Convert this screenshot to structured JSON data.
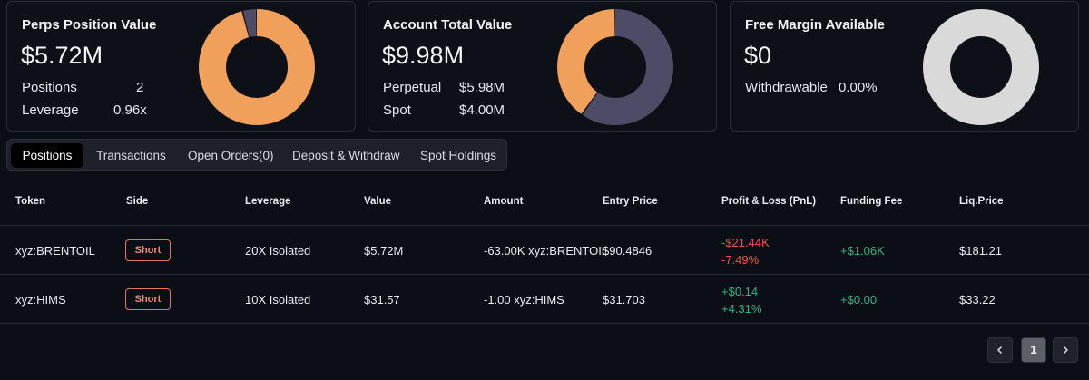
{
  "cards": {
    "perps": {
      "title": "Perps Position Value",
      "value": "$5.72M",
      "rows": [
        {
          "label": "Positions",
          "value": "2"
        },
        {
          "label": "Leverage",
          "value": "0.96x"
        }
      ],
      "donut_segments": [
        {
          "share": 0.96,
          "color": "#f0a05a"
        },
        {
          "share": 0.04,
          "color": "#4c4c66"
        }
      ]
    },
    "account": {
      "title": "Account Total Value",
      "value": "$9.98M",
      "rows": [
        {
          "label": "Perpetual",
          "value": "$5.98M"
        },
        {
          "label": "Spot",
          "value": "$4.00M"
        }
      ],
      "donut_segments": [
        {
          "share": 0.599,
          "color": "#4c4c66"
        },
        {
          "share": 0.401,
          "color": "#f0a05a"
        }
      ]
    },
    "margin": {
      "title": "Free Margin Available",
      "value": "$0",
      "rows": [
        {
          "label": "Withdrawable",
          "value": "0.00%"
        }
      ],
      "donut_segments": [
        {
          "share": 1.0,
          "color": "#d9d9d9"
        }
      ]
    }
  },
  "tabs": [
    "Positions",
    "Transactions",
    "Open Orders(0)",
    "Deposit & Withdraw",
    "Spot Holdings"
  ],
  "active_tab": "Positions",
  "table": {
    "headers": [
      "Token",
      "Side",
      "Leverage",
      "Value",
      "Amount",
      "Entry Price",
      "Profit & Loss (PnL)",
      "Funding Fee",
      "Liq.Price"
    ],
    "rows": [
      {
        "token": "xyz:BRENTOIL",
        "side": "Short",
        "leverage": "20X Isolated",
        "value": "$5.72M",
        "amount": "-63.00K xyz:BRENTOIL",
        "entry_price": "$90.4846",
        "pnl_value": "-$21.44K",
        "pnl_percent": "-7.49%",
        "funding_fee": "+$1.06K",
        "liq_price": "$181.21"
      },
      {
        "token": "xyz:HIMS",
        "side": "Short",
        "leverage": "10X Isolated",
        "value": "$31.57",
        "amount": "-1.00 xyz:HIMS",
        "entry_price": "$31.703",
        "pnl_value": "+$0.14",
        "pnl_percent": "+4.31%",
        "funding_fee": "+$0.00",
        "liq_price": "$33.22"
      }
    ]
  },
  "pagination": {
    "prev_icon": "chevron-left-icon",
    "current_page": "1",
    "next_icon": "chevron-right-icon"
  },
  "colors": {
    "orange": "#f0a05a",
    "slate": "#4c4c66",
    "loss": "#f0504d",
    "gain": "#2fb488",
    "short_badge": "#e0735f"
  }
}
